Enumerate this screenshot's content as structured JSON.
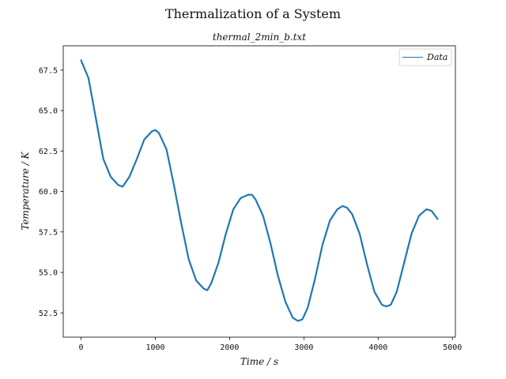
{
  "chart_data": {
    "type": "line",
    "title": "Thermalization of a System",
    "subtitle": "thermal_2min_b.txt",
    "xlabel": "Time / s",
    "ylabel": "Temperature / K",
    "xlim": [
      -240,
      5040
    ],
    "ylim": [
      51.0,
      69.0
    ],
    "xticks": [
      0,
      1000,
      2000,
      3000,
      4000,
      5000
    ],
    "xtick_labels": [
      "0",
      "1000",
      "2000",
      "3000",
      "4000",
      "5000"
    ],
    "yticks": [
      52.5,
      55.0,
      57.5,
      60.0,
      62.5,
      65.0,
      67.5
    ],
    "ytick_labels": [
      "52.5",
      "55.0",
      "57.5",
      "60.0",
      "62.5",
      "65.0",
      "67.5"
    ],
    "grid": false,
    "legend_position": "top-right",
    "series": [
      {
        "name": "Data",
        "color": "#1f77b4",
        "x": [
          0,
          100,
          200,
          300,
          400,
          500,
          560,
          650,
          750,
          850,
          950,
          1000,
          1050,
          1150,
          1250,
          1350,
          1450,
          1550,
          1650,
          1700,
          1750,
          1850,
          1950,
          2050,
          2150,
          2250,
          2300,
          2350,
          2450,
          2550,
          2650,
          2750,
          2850,
          2920,
          2980,
          3050,
          3150,
          3250,
          3350,
          3450,
          3520,
          3580,
          3650,
          3750,
          3850,
          3950,
          4050,
          4110,
          4170,
          4250,
          4350,
          4450,
          4550,
          4650,
          4720,
          4800
        ],
        "y": [
          68.1,
          67.0,
          64.5,
          62.0,
          60.9,
          60.4,
          60.3,
          60.9,
          62.0,
          63.2,
          63.7,
          63.8,
          63.6,
          62.6,
          60.4,
          58.0,
          55.8,
          54.5,
          54.0,
          53.9,
          54.3,
          55.6,
          57.4,
          58.9,
          59.6,
          59.8,
          59.8,
          59.5,
          58.5,
          56.8,
          54.8,
          53.2,
          52.2,
          52.0,
          52.1,
          52.8,
          54.6,
          56.7,
          58.2,
          58.9,
          59.1,
          59.0,
          58.6,
          57.4,
          55.5,
          53.8,
          53.0,
          52.9,
          53.0,
          53.8,
          55.6,
          57.4,
          58.5,
          58.9,
          58.8,
          58.3
        ]
      }
    ]
  }
}
